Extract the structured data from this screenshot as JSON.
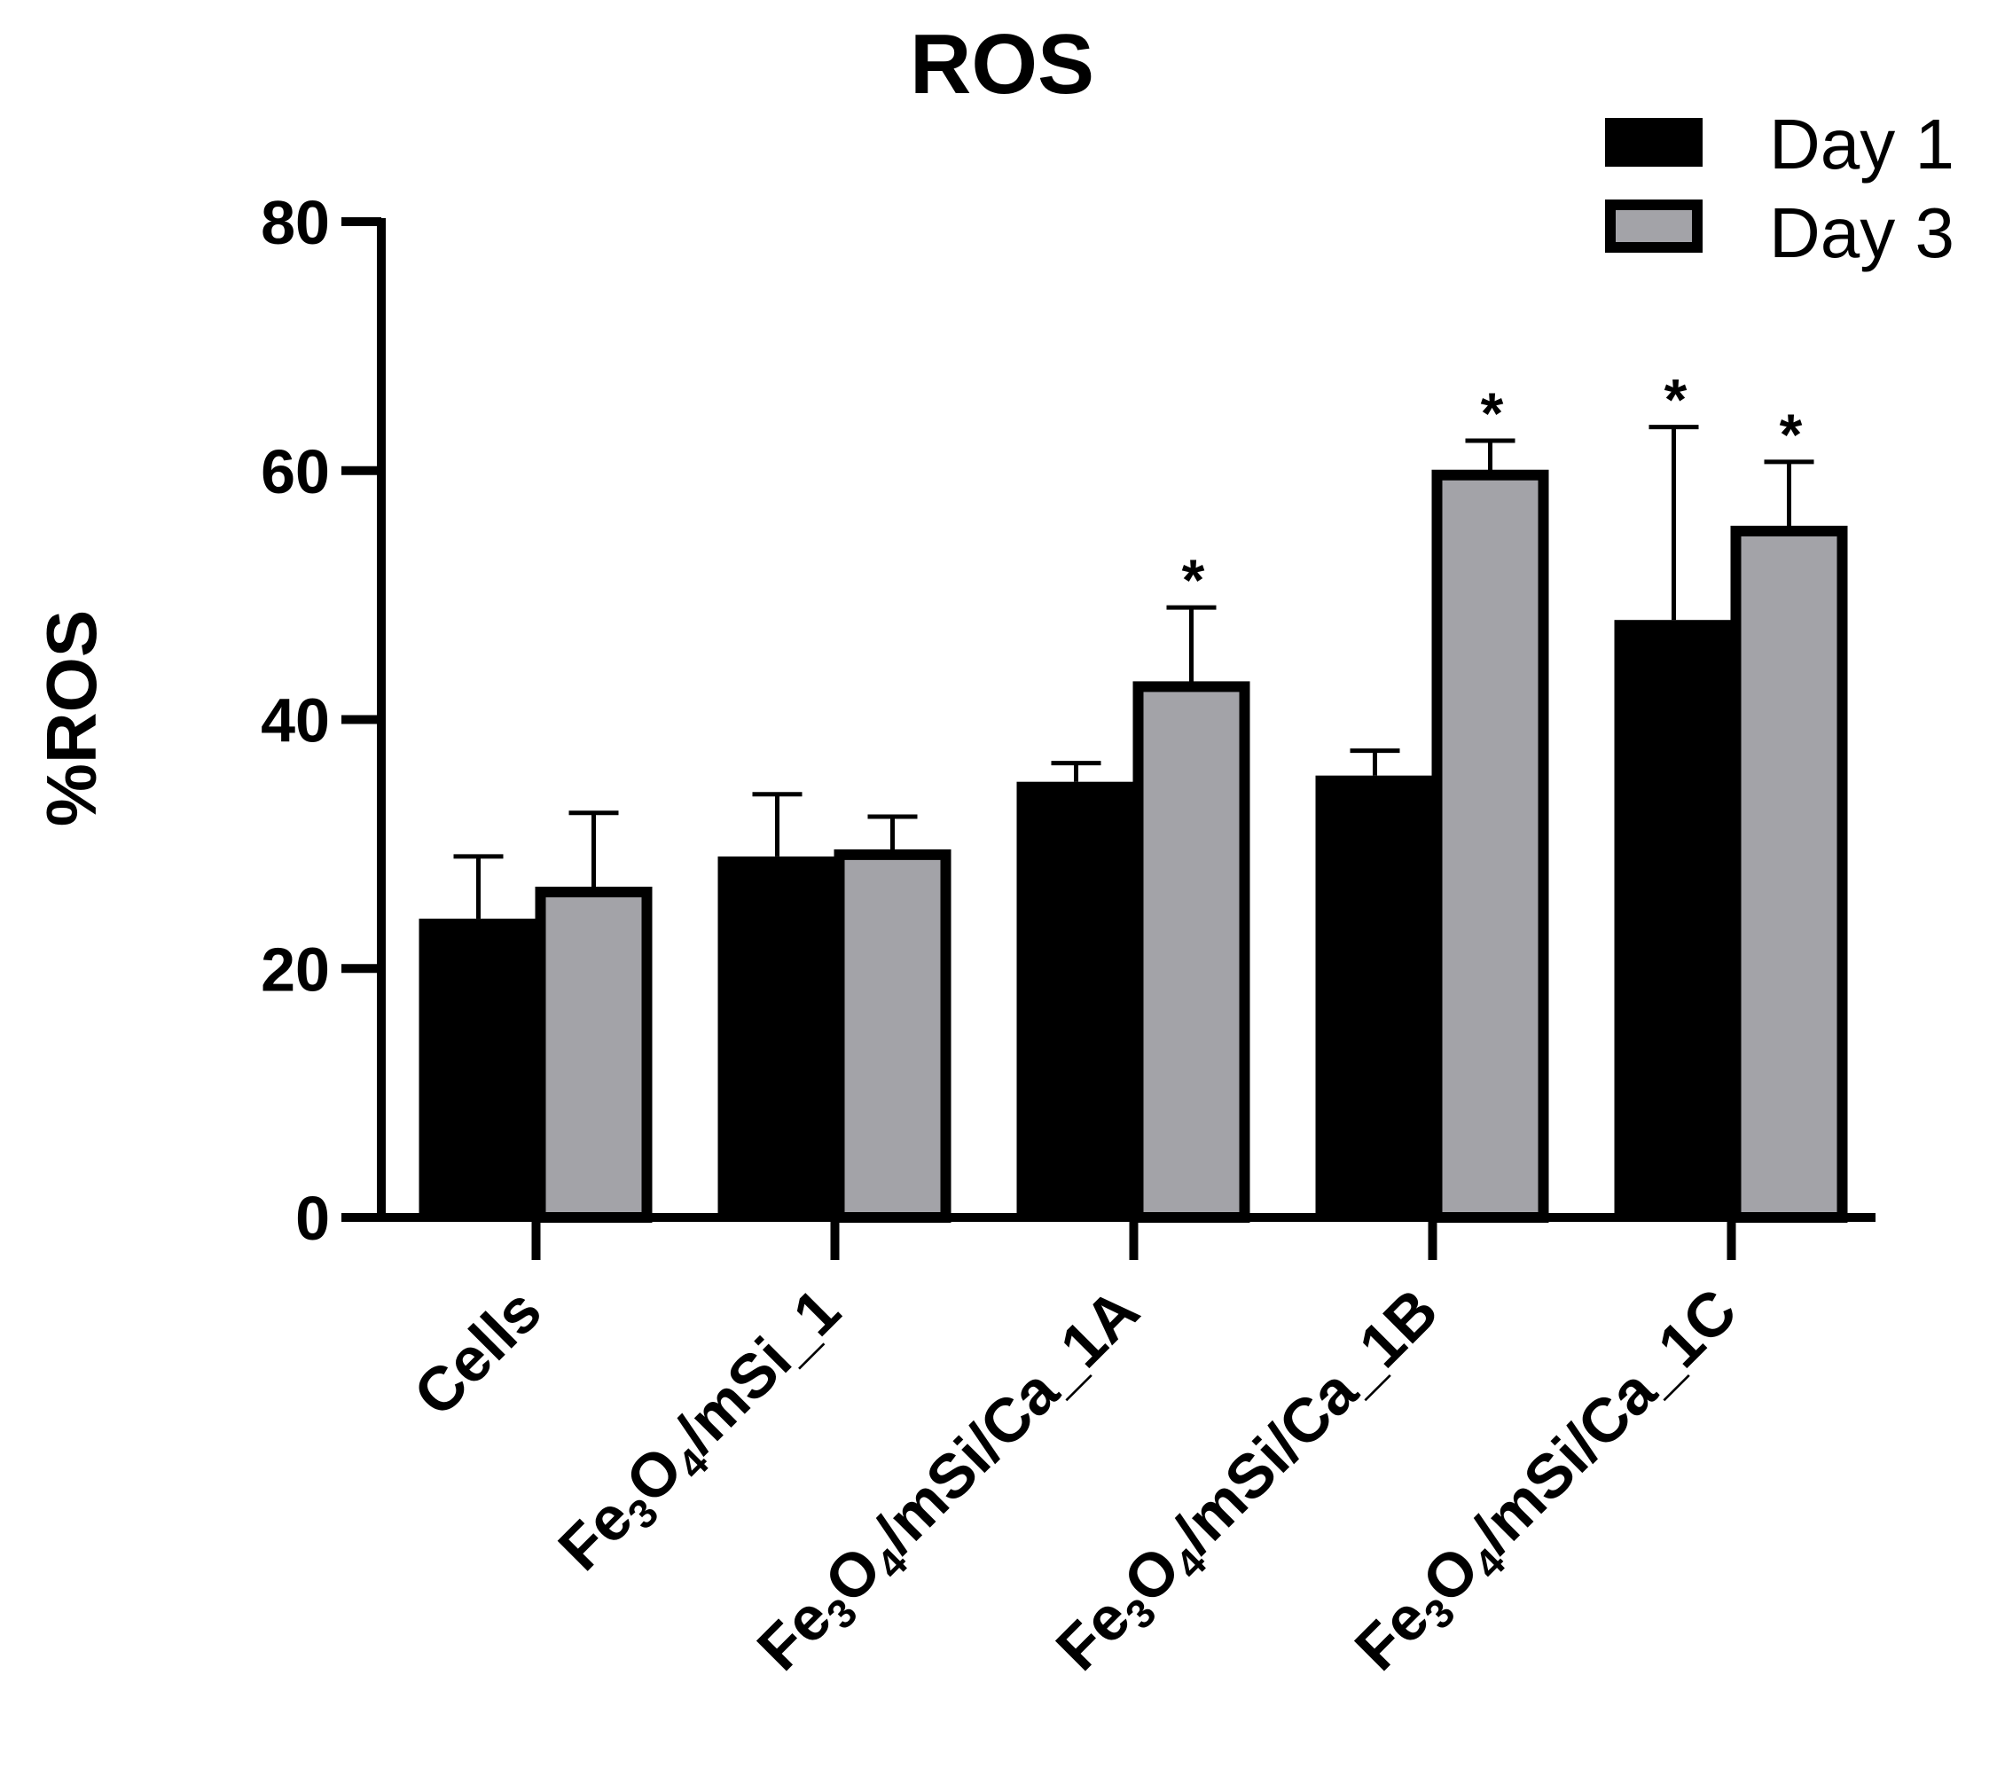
{
  "chart_data": {
    "type": "bar",
    "title": "ROS",
    "xlabel": "",
    "ylabel": "%ROS",
    "ylim": [
      0,
      80
    ],
    "yticks": [
      0,
      20,
      40,
      60,
      80
    ],
    "categories": [
      {
        "parts": [
          "Cells"
        ],
        "text": "Cells"
      },
      {
        "parts": [
          "Fe",
          "3",
          "O",
          "4",
          "/mSi_1"
        ],
        "text": "Fe3O4/mSi_1"
      },
      {
        "parts": [
          "Fe",
          "3",
          "O",
          "4",
          "/mSi/Ca_1A"
        ],
        "text": "Fe3O4/mSi/Ca_1A"
      },
      {
        "parts": [
          "Fe",
          "3",
          "O",
          "4",
          "/mSi/Ca_1B"
        ],
        "text": "Fe3O4/mSi/Ca_1B"
      },
      {
        "parts": [
          "Fe",
          "3",
          "O",
          "4",
          "/mSi/Ca_1C"
        ],
        "text": "Fe3O4/mSi/Ca_1C"
      }
    ],
    "series": [
      {
        "name": "Day 1",
        "color": "#000000",
        "values": [
          24,
          29,
          35,
          35.5,
          48
        ],
        "errors": [
          5,
          5,
          1.5,
          2,
          15.5
        ],
        "significance": [
          "",
          "",
          "",
          "",
          "*"
        ]
      },
      {
        "name": "Day 3",
        "color": "#a3a3a8",
        "values": [
          26.5,
          29.5,
          43,
          60,
          55.5
        ],
        "errors": [
          6,
          2.7,
          6,
          2.4,
          5.2
        ],
        "significance": [
          "",
          "",
          "*",
          "*",
          "*"
        ]
      }
    ],
    "legend_position": "top-right"
  }
}
